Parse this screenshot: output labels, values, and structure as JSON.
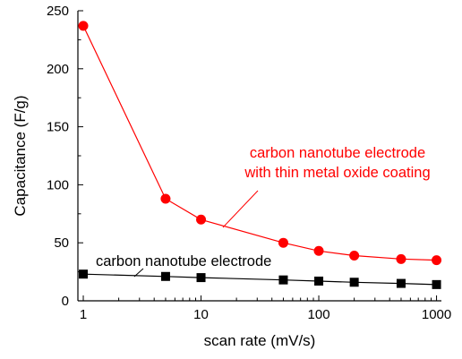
{
  "chart_data": {
    "type": "line",
    "xscale": "log",
    "x": [
      1,
      5,
      10,
      50,
      100,
      200,
      500,
      1000
    ],
    "xlim": [
      0.9,
      1100
    ],
    "ylim": [
      0,
      250
    ],
    "xticks": [
      "1",
      "10",
      "100",
      "1000"
    ],
    "yticks": [
      "0",
      "50",
      "100",
      "150",
      "200",
      "250"
    ],
    "xlabel": "scan rate (mV/s)",
    "ylabel": "Capacitance (F/g)",
    "grid": false,
    "series": [
      {
        "name": "carbon nanotube electrode with thin metal oxide coating",
        "label_lines": [
          "carbon nanotube electrode",
          "with thin metal oxide coating"
        ],
        "color": "#ff0000",
        "marker": "circle",
        "values": [
          237,
          88,
          70,
          50,
          43,
          39,
          36,
          35
        ]
      },
      {
        "name": "carbon nanotube electrode",
        "label_lines": [
          "carbon nanotube electrode"
        ],
        "color": "#000000",
        "marker": "square",
        "values": [
          23,
          21,
          20,
          18,
          17,
          16,
          15,
          14
        ]
      }
    ]
  }
}
